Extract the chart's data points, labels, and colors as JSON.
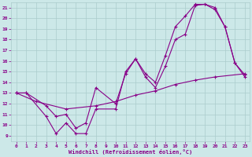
{
  "title": "",
  "xlabel": "Windchill (Refroidissement éolien,°C)",
  "ylabel": "",
  "xlim": [
    -0.5,
    23.5
  ],
  "ylim": [
    8.5,
    21.5
  ],
  "background_color": "#cce8e8",
  "grid_color": "#aacccc",
  "line_color": "#880088",
  "xticks": [
    0,
    1,
    2,
    3,
    4,
    5,
    6,
    7,
    8,
    9,
    10,
    11,
    12,
    13,
    14,
    15,
    16,
    17,
    18,
    19,
    20,
    21,
    22,
    23
  ],
  "yticks": [
    9,
    10,
    11,
    12,
    13,
    14,
    15,
    16,
    17,
    18,
    19,
    20,
    21
  ],
  "series1_x": [
    0,
    1,
    3,
    4,
    5,
    6,
    7,
    8,
    10,
    11,
    12,
    13,
    14,
    15,
    16,
    17,
    18,
    19,
    20,
    21,
    22,
    23
  ],
  "series1_y": [
    13,
    13,
    10.8,
    9.2,
    10.2,
    9.2,
    9.2,
    11.5,
    11.5,
    15.0,
    16.2,
    14.5,
    13.5,
    15.5,
    18.0,
    18.5,
    21.2,
    21.3,
    21.0,
    19.2,
    15.8,
    14.5
  ],
  "series2_x": [
    0,
    1,
    3,
    4,
    5,
    6,
    7,
    8,
    10,
    11,
    12,
    13,
    14,
    15,
    16,
    17,
    18,
    19,
    20,
    21,
    22,
    23
  ],
  "series2_y": [
    13,
    13,
    11.8,
    10.8,
    11.0,
    9.7,
    10.2,
    13.5,
    12.0,
    14.8,
    16.2,
    14.8,
    14.0,
    16.5,
    19.2,
    20.2,
    21.3,
    21.3,
    20.8,
    19.2,
    15.8,
    14.7
  ],
  "series3_x": [
    0,
    2,
    5,
    8,
    10,
    12,
    14,
    16,
    18,
    20,
    23
  ],
  "series3_y": [
    13,
    12.2,
    11.5,
    11.8,
    12.2,
    12.8,
    13.2,
    13.8,
    14.2,
    14.5,
    14.8
  ]
}
